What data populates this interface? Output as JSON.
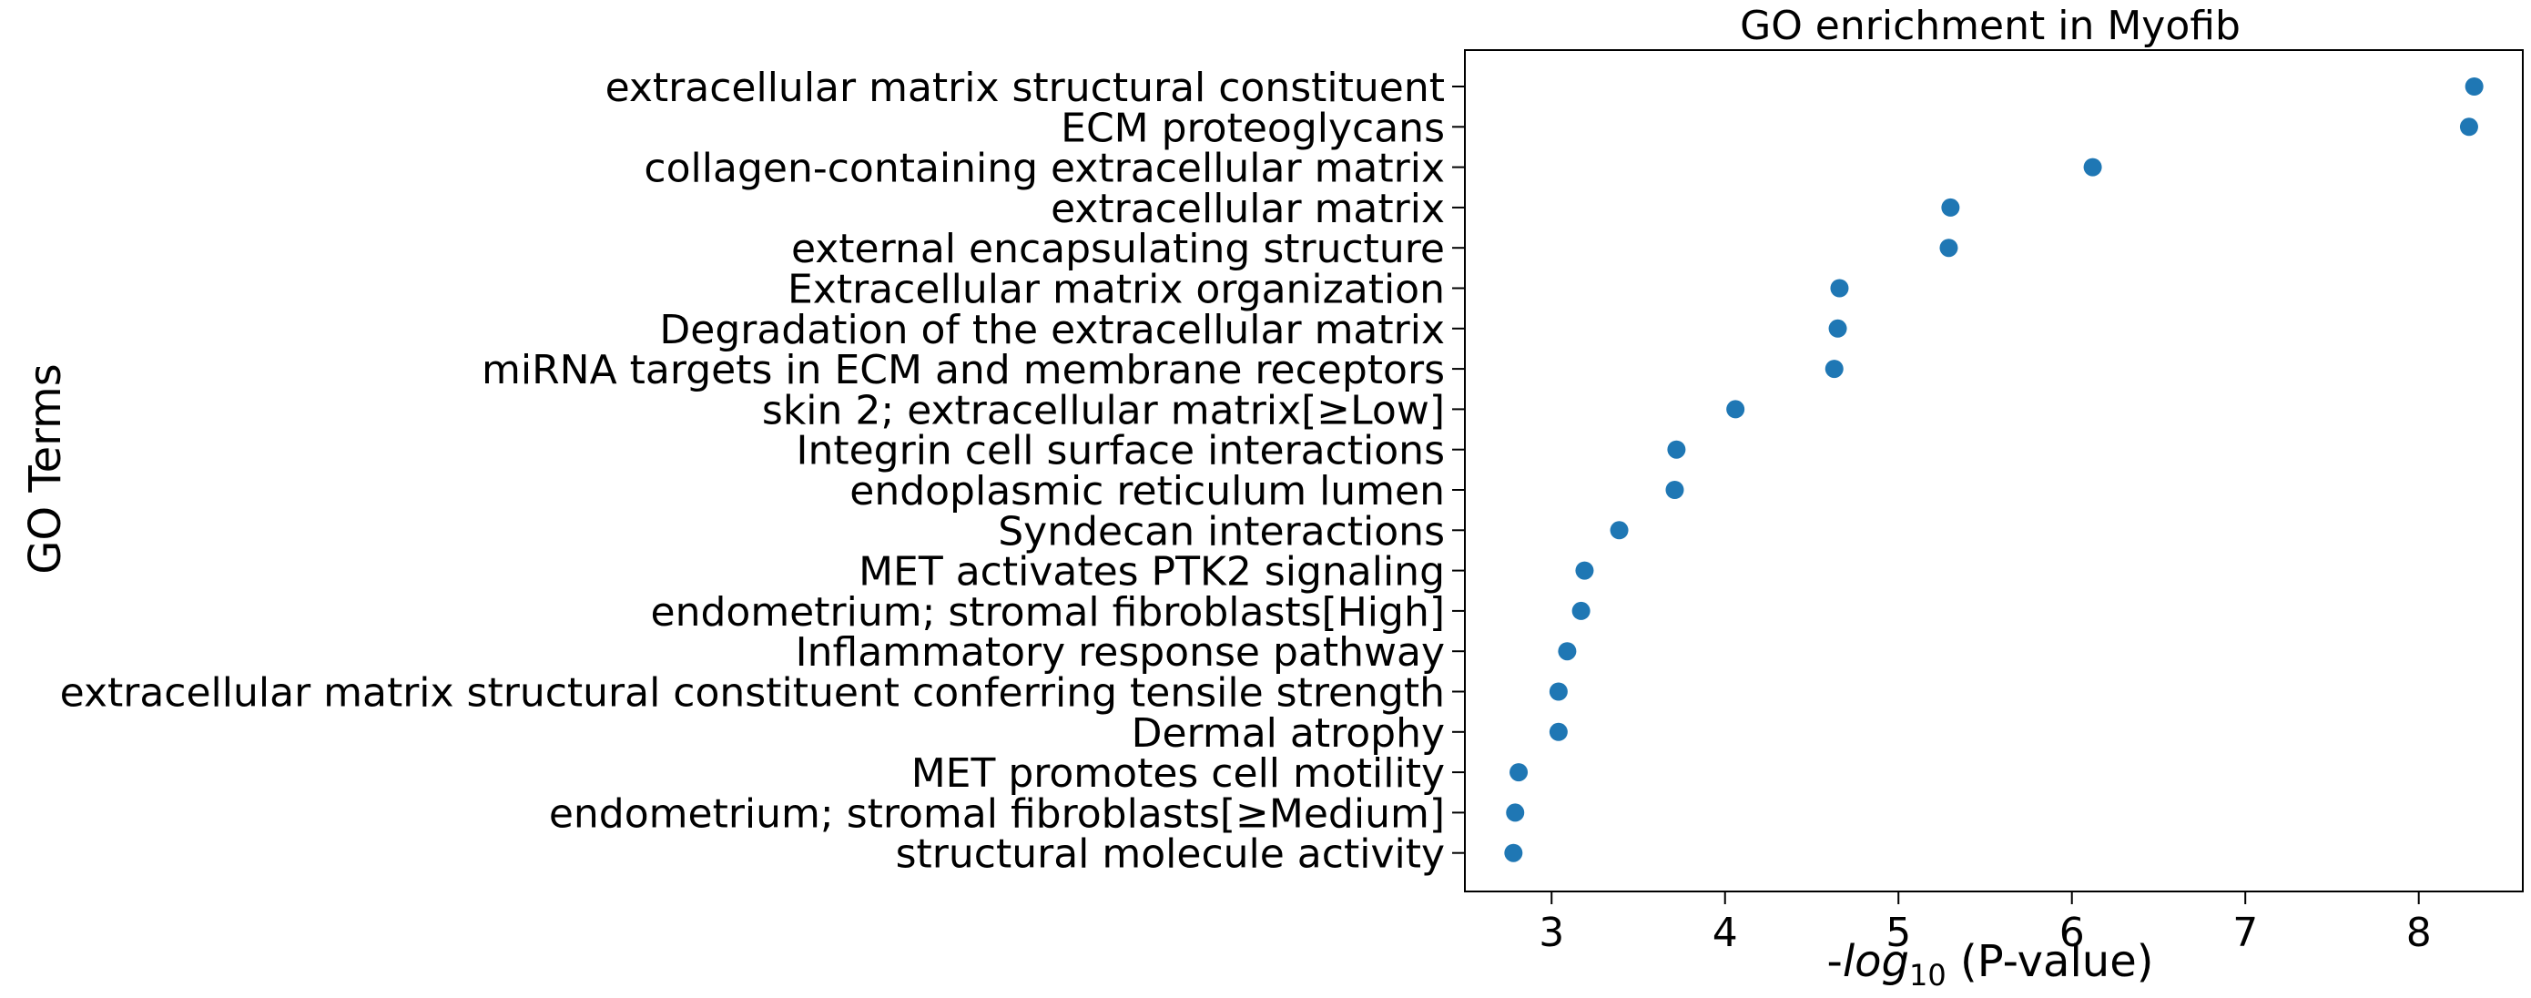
{
  "chart_data": {
    "type": "scatter",
    "title": "GO enrichment in Myofib",
    "xlabel": {
      "prefix": "-",
      "italic": "log",
      "subscript": "10",
      "suffix": " (P-value)"
    },
    "ylabel": "GO Terms",
    "xlim": [
      2.5,
      8.6
    ],
    "xticks": [
      3,
      4,
      5,
      6,
      7,
      8
    ],
    "grid": false,
    "legend": "none",
    "marker_color": "#1f77b4",
    "points": [
      {
        "term": "extracellular matrix structural constituent",
        "value": 8.32
      },
      {
        "term": "ECM proteoglycans",
        "value": 8.29
      },
      {
        "term": "collagen-containing extracellular matrix",
        "value": 6.12
      },
      {
        "term": "extracellular matrix",
        "value": 5.3
      },
      {
        "term": "external encapsulating structure",
        "value": 5.29
      },
      {
        "term": "Extracellular matrix organization",
        "value": 4.66
      },
      {
        "term": "Degradation of the extracellular matrix",
        "value": 4.65
      },
      {
        "term": "miRNA targets in ECM and membrane receptors",
        "value": 4.63
      },
      {
        "term": "skin 2; extracellular matrix[≥Low]",
        "value": 4.06
      },
      {
        "term": "Integrin cell surface interactions",
        "value": 3.72
      },
      {
        "term": "endoplasmic reticulum lumen",
        "value": 3.71
      },
      {
        "term": "Syndecan interactions",
        "value": 3.39
      },
      {
        "term": "MET activates PTK2 signaling",
        "value": 3.19
      },
      {
        "term": "endometrium; stromal fibroblasts[High]",
        "value": 3.17
      },
      {
        "term": "Inflammatory response pathway",
        "value": 3.09
      },
      {
        "term": "extracellular matrix structural constituent conferring tensile strength",
        "value": 3.04
      },
      {
        "term": "Dermal atrophy",
        "value": 3.04
      },
      {
        "term": "MET promotes cell motility",
        "value": 2.81
      },
      {
        "term": "endometrium; stromal fibroblasts[≥Medium]",
        "value": 2.79
      },
      {
        "term": "structural molecule activity",
        "value": 2.78
      }
    ]
  }
}
